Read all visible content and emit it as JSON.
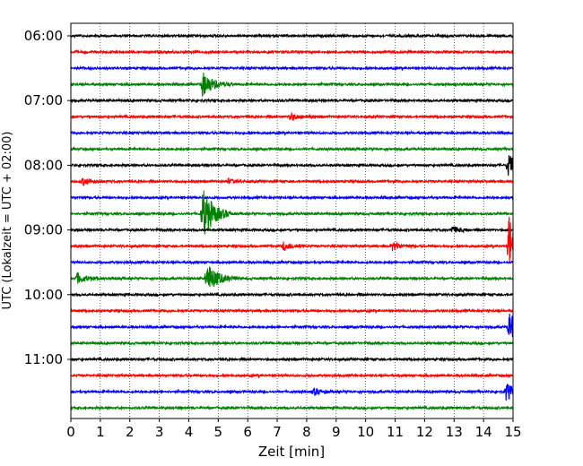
{
  "chart_data": {
    "type": "line",
    "title": "",
    "xlabel": "Zeit  [min]",
    "ylabel": "UTC (Lokalzeit = UTC + 02:00)",
    "xlim": [
      0,
      15
    ],
    "x_ticks": [
      "0",
      "1",
      "2",
      "3",
      "4",
      "5",
      "6",
      "7",
      "8",
      "9",
      "10",
      "11",
      "12",
      "13",
      "14",
      "15"
    ],
    "y_ticks": [
      "06:00",
      "07:00",
      "08:00",
      "09:00",
      "10:00",
      "11:00"
    ],
    "grid": "vertical dotted",
    "trace_interval_min": 15,
    "trace_colors": [
      "#000000",
      "#ff0000",
      "#0000ff",
      "#008000"
    ],
    "traces": [
      {
        "start": "06:00",
        "color": "#000000"
      },
      {
        "start": "06:15",
        "color": "#ff0000"
      },
      {
        "start": "06:30",
        "color": "#0000ff"
      },
      {
        "start": "06:45",
        "color": "#008000"
      },
      {
        "start": "07:00",
        "color": "#000000"
      },
      {
        "start": "07:15",
        "color": "#ff0000"
      },
      {
        "start": "07:30",
        "color": "#0000ff"
      },
      {
        "start": "07:45",
        "color": "#008000"
      },
      {
        "start": "08:00",
        "color": "#000000"
      },
      {
        "start": "08:15",
        "color": "#ff0000"
      },
      {
        "start": "08:30",
        "color": "#0000ff"
      },
      {
        "start": "08:45",
        "color": "#008000"
      },
      {
        "start": "09:00",
        "color": "#000000"
      },
      {
        "start": "09:15",
        "color": "#ff0000"
      },
      {
        "start": "09:30",
        "color": "#0000ff"
      },
      {
        "start": "09:45",
        "color": "#008000"
      },
      {
        "start": "10:00",
        "color": "#000000"
      },
      {
        "start": "10:15",
        "color": "#ff0000"
      },
      {
        "start": "10:30",
        "color": "#0000ff"
      },
      {
        "start": "10:45",
        "color": "#008000"
      },
      {
        "start": "11:00",
        "color": "#000000"
      },
      {
        "start": "11:15",
        "color": "#ff0000"
      },
      {
        "start": "11:30",
        "color": "#0000ff"
      },
      {
        "start": "11:45",
        "color": "#008000"
      }
    ],
    "events": [
      {
        "trace": 5,
        "minute": 7.4,
        "amplitude": 0.5
      },
      {
        "trace": 9,
        "minute": 0.4,
        "amplitude": 0.45
      },
      {
        "trace": 9,
        "minute": 5.3,
        "amplitude": 0.25
      },
      {
        "trace": 12,
        "minute": 12.9,
        "amplitude": 0.45
      },
      {
        "trace": 13,
        "minute": 7.2,
        "amplitude": 0.55
      },
      {
        "trace": 13,
        "minute": 10.9,
        "amplitude": 0.5
      },
      {
        "trace": 15,
        "minute": 0.2,
        "amplitude": 0.7
      },
      {
        "trace": 22,
        "minute": 8.2,
        "amplitude": 0.45
      },
      {
        "trace": 11,
        "minute": 4.45,
        "amplitude": 3.5
      },
      {
        "trace": 15,
        "minute": 4.6,
        "amplitude": 2.0
      },
      {
        "trace": 13,
        "minute": 14.85,
        "amplitude": 4.0
      },
      {
        "trace": 18,
        "minute": 14.85,
        "amplitude": 1.8
      },
      {
        "trace": 3,
        "minute": 4.45,
        "amplitude": 1.6
      },
      {
        "trace": 8,
        "minute": 14.8,
        "amplitude": 1.5
      },
      {
        "trace": 22,
        "minute": 14.75,
        "amplitude": 1.2
      }
    ]
  }
}
